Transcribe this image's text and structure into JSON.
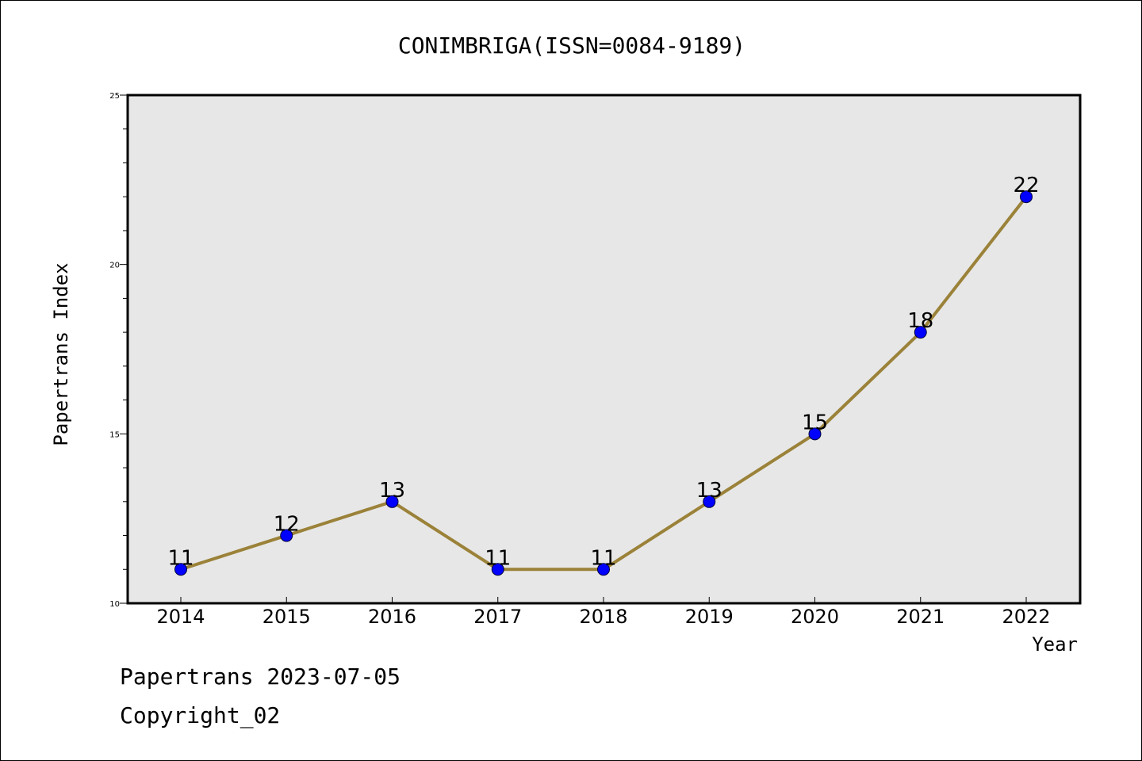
{
  "chart_data": {
    "type": "line",
    "title": "CONIMBRIGA(ISSN=0084-9189)",
    "xlabel": "Year",
    "ylabel": "Papertrans Index",
    "categories": [
      "2014",
      "2015",
      "2016",
      "2017",
      "2018",
      "2019",
      "2020",
      "2021",
      "2022"
    ],
    "values": [
      11,
      12,
      13,
      11,
      11,
      13,
      15,
      18,
      22
    ],
    "ylim": [
      10,
      25
    ],
    "yticks": [
      "10",
      "15",
      "20",
      "25"
    ],
    "grid": false,
    "line_color": "#9B8239",
    "marker_color": "#0000FF",
    "plot_background": "#E7E7E7"
  },
  "footer": {
    "date_line": "Papertrans 2023-07-05",
    "copyright_line": "Copyright_02"
  }
}
